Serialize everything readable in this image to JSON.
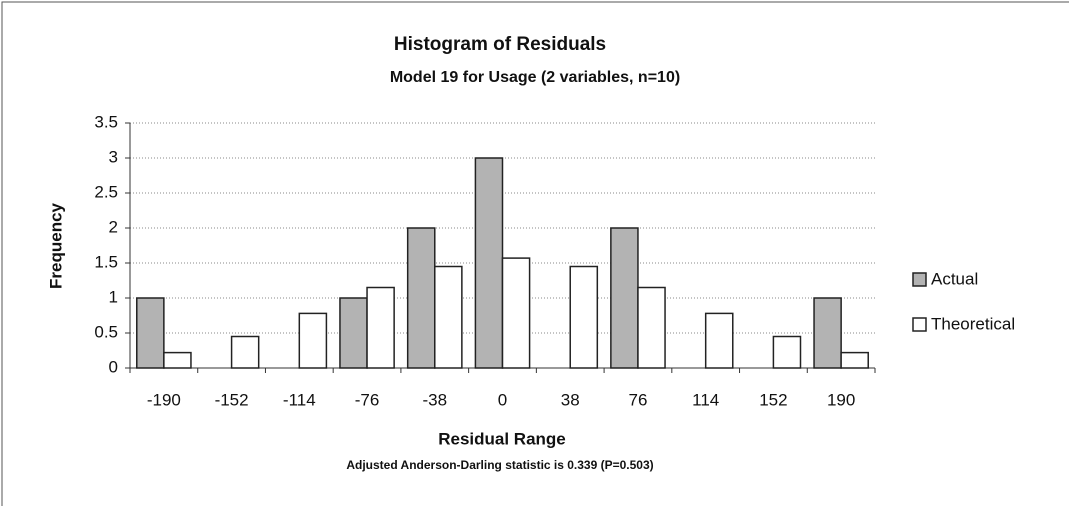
{
  "chart_data": {
    "type": "bar",
    "title": "Histogram of Residuals",
    "subtitle": "Model 19 for Usage    (2 variables, n=10)",
    "x_label": "Residual Range",
    "y_label": "Frequency",
    "annotation": "Adjusted Anderson-Darling statistic is 0.339 (P=0.503)",
    "categories": [
      "-190",
      "-152",
      "-114",
      "-76",
      "-38",
      "0",
      "38",
      "76",
      "114",
      "152",
      "190"
    ],
    "series": [
      {
        "name": "Actual",
        "color": "#b3b3b3",
        "values": [
          1,
          0,
          0,
          1,
          2,
          3,
          0,
          2,
          0,
          0,
          1
        ]
      },
      {
        "name": "Theoretical",
        "color": "#ffffff",
        "values": [
          0.22,
          0.45,
          0.78,
          1.15,
          1.45,
          1.57,
          1.45,
          1.15,
          0.78,
          0.45,
          0.22
        ]
      }
    ],
    "ylim": [
      0,
      3.5
    ],
    "yticks": [
      0,
      0.5,
      1,
      1.5,
      2,
      2.5,
      3,
      3.5
    ],
    "grid": true,
    "legend": "right"
  }
}
